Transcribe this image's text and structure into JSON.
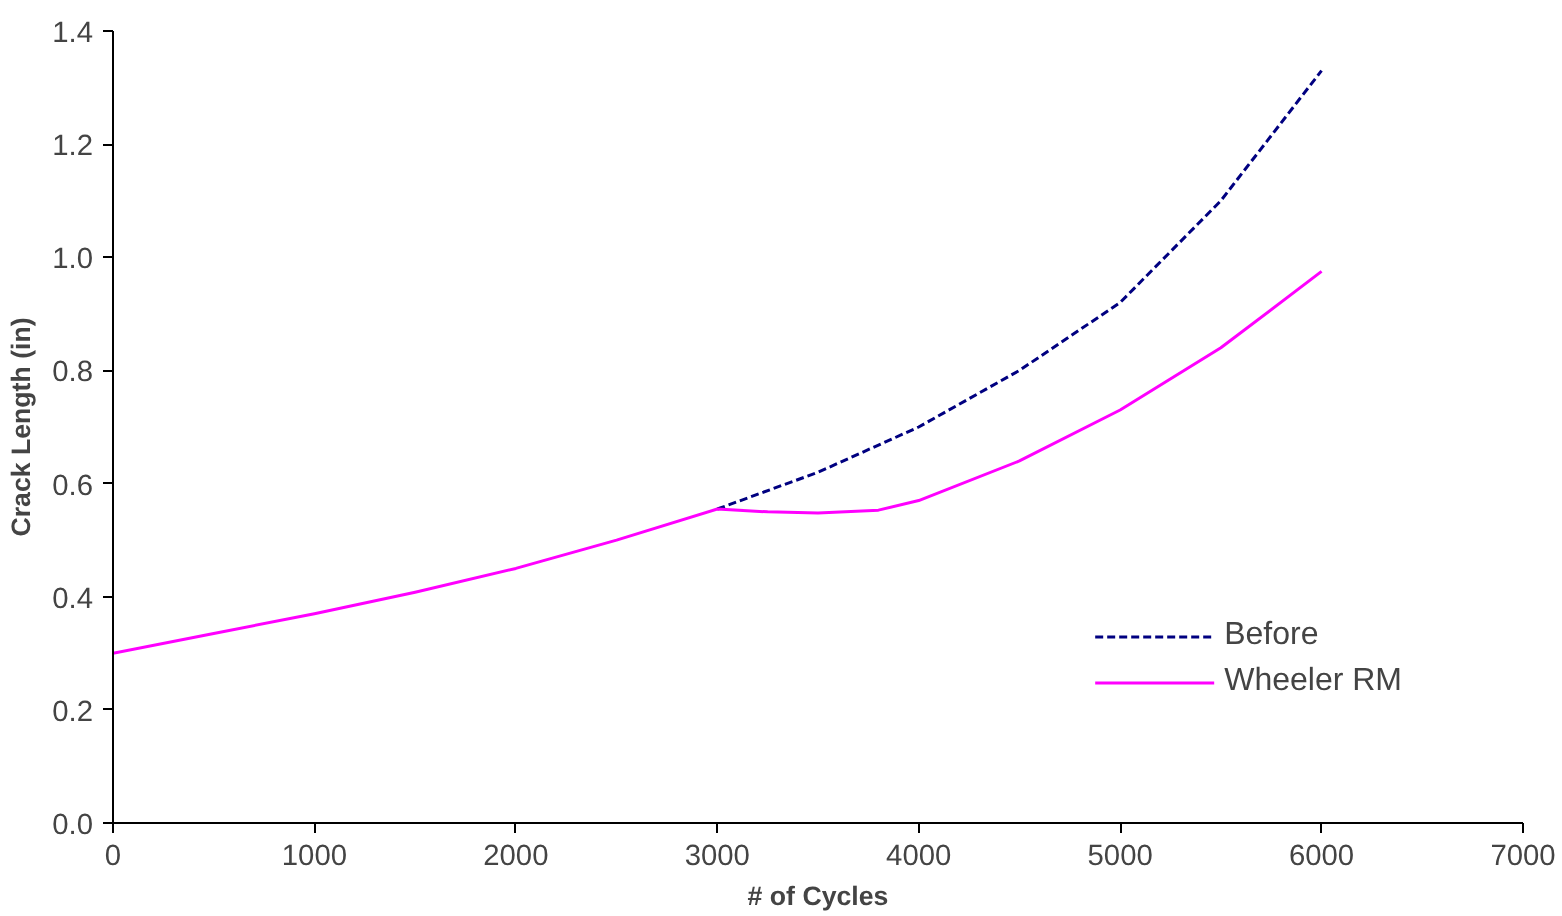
{
  "chart_data": {
    "type": "line",
    "xlabel": "# of Cycles",
    "ylabel": "Crack Length (in)",
    "xlim": [
      0,
      7000
    ],
    "xticks": [
      0,
      1000,
      2000,
      3000,
      4000,
      5000,
      6000,
      7000
    ],
    "ylim": [
      0,
      1.4
    ],
    "yticks": [
      {
        "value": 0,
        "label": "0.0"
      },
      {
        "value": 0.2,
        "label": "0.2"
      },
      {
        "value": 0.4,
        "label": "0.4"
      },
      {
        "value": 0.6,
        "label": "0.6"
      },
      {
        "value": 0.8,
        "label": "0.8"
      },
      {
        "value": 1.0,
        "label": "1.0"
      },
      {
        "value": 1.2,
        "label": "1.2"
      },
      {
        "value": 1.4,
        "label": "1.4"
      }
    ],
    "grid": false,
    "legend": "bottom right",
    "marker": "none",
    "series": [
      {
        "name": "Before",
        "color": "#000080",
        "line_style": "dashed",
        "x": [
          3000,
          3500,
          4000,
          4500,
          5000,
          5500,
          6000
        ],
        "values": [
          0.555,
          0.62,
          0.7,
          0.8,
          0.92,
          1.1,
          1.33
        ]
      },
      {
        "name": "Wheeler RM",
        "color": "#ff00ff",
        "line_style": "solid",
        "x": [
          0,
          500,
          1000,
          1500,
          2000,
          2500,
          3000,
          3250,
          3500,
          3800,
          4000,
          4500,
          5000,
          5500,
          6000
        ],
        "values": [
          0.3,
          0.335,
          0.37,
          0.408,
          0.45,
          0.5,
          0.555,
          0.55,
          0.548,
          0.553,
          0.57,
          0.64,
          0.73,
          0.84,
          0.975
        ]
      }
    ]
  }
}
